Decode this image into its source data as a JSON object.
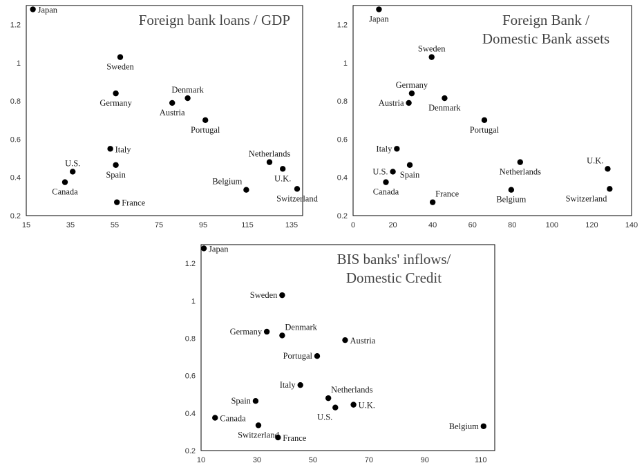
{
  "chart_data": [
    {
      "type": "scatter",
      "title": [
        "Foreign bank loans / GDP"
      ],
      "title_anchor": "end",
      "xlim": [
        15,
        140
      ],
      "xticks": [
        15,
        35,
        55,
        75,
        95,
        115,
        135
      ],
      "ylim": [
        0.2,
        1.3
      ],
      "yticks": [
        0.2,
        0.4,
        0.6,
        0.8,
        1,
        1.2
      ],
      "grid": false,
      "points": [
        {
          "label": "Japan",
          "x": 18,
          "y": 1.28,
          "pos": "right"
        },
        {
          "label": "Sweden",
          "x": 57.5,
          "y": 1.03,
          "pos": "below"
        },
        {
          "label": "Germany",
          "x": 55.5,
          "y": 0.84,
          "pos": "below"
        },
        {
          "label": "Denmark",
          "x": 88,
          "y": 0.815,
          "pos": "above"
        },
        {
          "label": "Austria",
          "x": 81,
          "y": 0.79,
          "pos": "below"
        },
        {
          "label": "Portugal",
          "x": 96,
          "y": 0.7,
          "pos": "below"
        },
        {
          "label": "Italy",
          "x": 53,
          "y": 0.55,
          "pos": "right"
        },
        {
          "label": "Spain",
          "x": 55.5,
          "y": 0.465,
          "pos": "below"
        },
        {
          "label": "U.S.",
          "x": 36,
          "y": 0.43,
          "pos": "above"
        },
        {
          "label": "Canada",
          "x": 32.5,
          "y": 0.375,
          "pos": "below"
        },
        {
          "label": "France",
          "x": 56,
          "y": 0.27,
          "pos": "right"
        },
        {
          "label": "Netherlands",
          "x": 125,
          "y": 0.48,
          "pos": "above"
        },
        {
          "label": "U.K.",
          "x": 131,
          "y": 0.445,
          "pos": "below"
        },
        {
          "label": "Belgium",
          "x": 114.5,
          "y": 0.335,
          "pos": "aboveleft"
        },
        {
          "label": "Switzerland",
          "x": 137.5,
          "y": 0.34,
          "pos": "below"
        }
      ]
    },
    {
      "type": "scatter",
      "title": [
        "Foreign Bank /",
        "Domestic Bank assets"
      ],
      "title_anchor": "middle",
      "xlim": [
        0,
        140
      ],
      "xticks": [
        0,
        20,
        40,
        60,
        80,
        100,
        120,
        140
      ],
      "ylim": [
        0.2,
        1.3
      ],
      "yticks": [
        0.2,
        0.4,
        0.6,
        0.8,
        1,
        1.2
      ],
      "grid": false,
      "points": [
        {
          "label": "Japan",
          "x": 13,
          "y": 1.28,
          "pos": "below"
        },
        {
          "label": "Sweden",
          "x": 39.5,
          "y": 1.03,
          "pos": "above"
        },
        {
          "label": "Germany",
          "x": 29.5,
          "y": 0.84,
          "pos": "above"
        },
        {
          "label": "Denmark",
          "x": 46,
          "y": 0.815,
          "pos": "below"
        },
        {
          "label": "Austria",
          "x": 28,
          "y": 0.79,
          "pos": "left"
        },
        {
          "label": "Portugal",
          "x": 66,
          "y": 0.7,
          "pos": "below"
        },
        {
          "label": "Italy",
          "x": 22,
          "y": 0.55,
          "pos": "left"
        },
        {
          "label": "Spain",
          "x": 28.5,
          "y": 0.465,
          "pos": "below"
        },
        {
          "label": "U.S.",
          "x": 20,
          "y": 0.43,
          "pos": "left"
        },
        {
          "label": "Canada",
          "x": 16.5,
          "y": 0.375,
          "pos": "below"
        },
        {
          "label": "France",
          "x": 40,
          "y": 0.27,
          "pos": "aboveright"
        },
        {
          "label": "Netherlands",
          "x": 84,
          "y": 0.48,
          "pos": "below"
        },
        {
          "label": "Belgium",
          "x": 79.5,
          "y": 0.335,
          "pos": "below"
        },
        {
          "label": "U.K.",
          "x": 128,
          "y": 0.445,
          "pos": "aboveleft"
        },
        {
          "label": "Switzerland",
          "x": 129,
          "y": 0.34,
          "pos": "belowleft"
        }
      ]
    },
    {
      "type": "scatter",
      "title": [
        "BIS banks' inflows/",
        "Domestic Credit"
      ],
      "title_anchor": "middle",
      "xlim": [
        10,
        115
      ],
      "xticks": [
        10,
        30,
        50,
        70,
        90,
        110
      ],
      "ylim": [
        0.2,
        1.3
      ],
      "yticks": [
        0.2,
        0.4,
        0.6,
        0.8,
        1,
        1.2
      ],
      "grid": false,
      "points": [
        {
          "label": "Japan",
          "x": 11,
          "y": 1.28,
          "pos": "right"
        },
        {
          "label": "Sweden",
          "x": 39,
          "y": 1.03,
          "pos": "left"
        },
        {
          "label": "Germany",
          "x": 33.5,
          "y": 0.835,
          "pos": "left"
        },
        {
          "label": "Denmark",
          "x": 39,
          "y": 0.815,
          "pos": "aboveright"
        },
        {
          "label": "Austria",
          "x": 61.5,
          "y": 0.79,
          "pos": "right"
        },
        {
          "label": "Portugal",
          "x": 51.5,
          "y": 0.705,
          "pos": "left"
        },
        {
          "label": "Italy",
          "x": 45.5,
          "y": 0.55,
          "pos": "left"
        },
        {
          "label": "Spain",
          "x": 29.5,
          "y": 0.465,
          "pos": "left"
        },
        {
          "label": "Netherlands",
          "x": 55.5,
          "y": 0.48,
          "pos": "aboveright"
        },
        {
          "label": "U.S.",
          "x": 58,
          "y": 0.43,
          "pos": "belowleft"
        },
        {
          "label": "U.K.",
          "x": 64.5,
          "y": 0.445,
          "pos": "right"
        },
        {
          "label": "Canada",
          "x": 15,
          "y": 0.375,
          "pos": "right"
        },
        {
          "label": "Switzerland",
          "x": 30.5,
          "y": 0.335,
          "pos": "below"
        },
        {
          "label": "France",
          "x": 37.5,
          "y": 0.27,
          "pos": "right"
        },
        {
          "label": "Belgium",
          "x": 111,
          "y": 0.33,
          "pos": "left"
        }
      ]
    }
  ]
}
